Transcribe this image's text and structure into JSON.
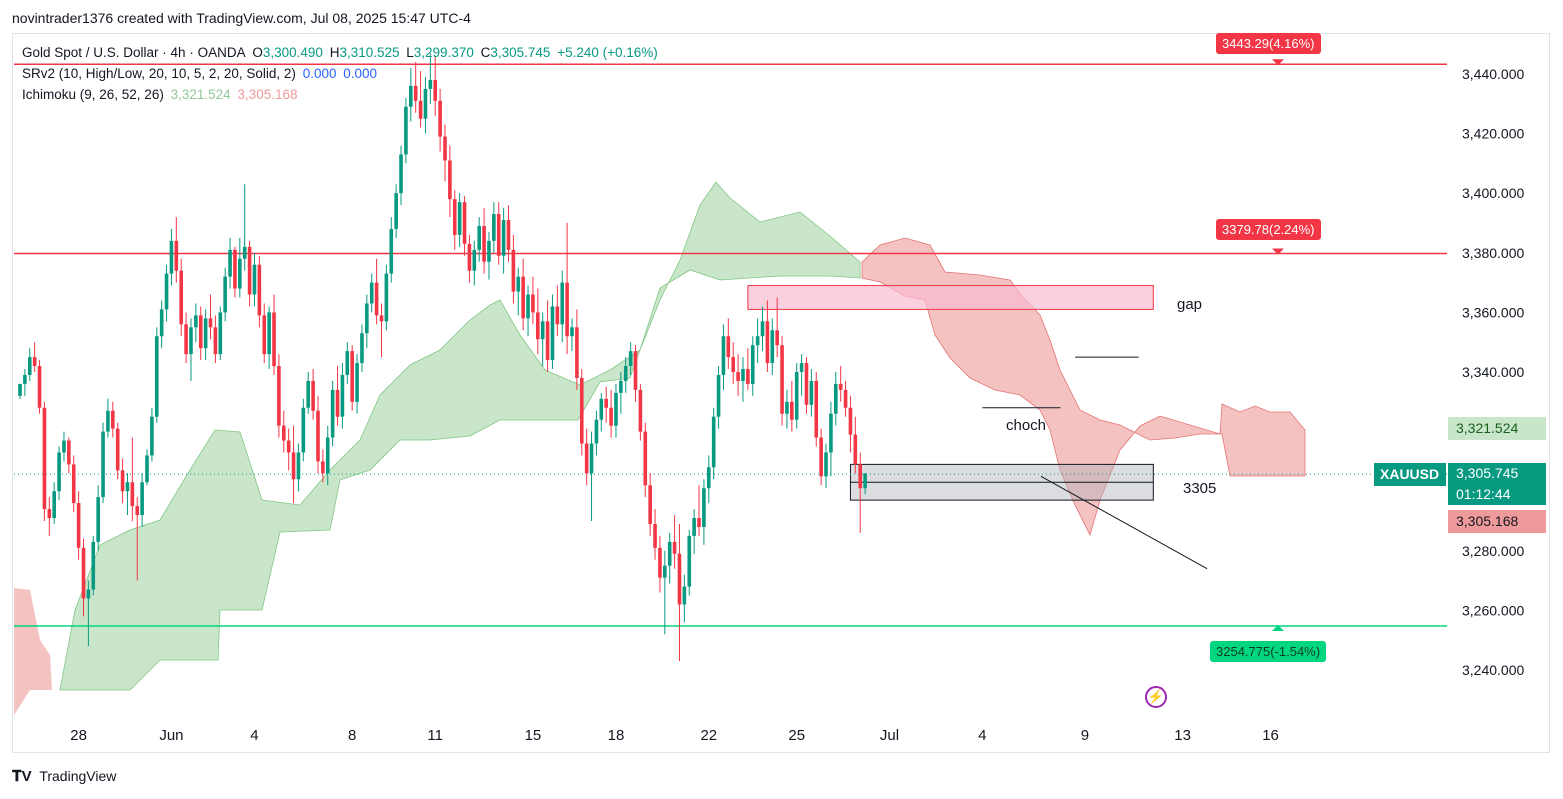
{
  "header": {
    "author_line": "novintrader1376 created with TradingView.com, Jul 08, 2025 15:47 UTC-4"
  },
  "legend": {
    "symbol_line": "Gold Spot / U.S. Dollar · 4h · OANDA",
    "open_label": "O",
    "open": "3,300.490",
    "high_label": "H",
    "high": "3,310.525",
    "low_label": "L",
    "low": "3,299.370",
    "close_label": "C",
    "close": "3,305.745",
    "change": "+5.240 (+0.16%)",
    "srv2_label": "SRv2 (10, High/Low, 20, 10, 5, 2, 20, Solid, 2)",
    "srv2_v1": "0.000",
    "srv2_v2": "0.000",
    "ichimoku_label": "Ichimoku (9, 26, 52, 26)",
    "ichimoku_v1": "3,321.524",
    "ichimoku_v2": "3,305.168"
  },
  "levels": {
    "top_badge": "3443.29(4.16%)",
    "mid_badge": "3379.78(2.24%)",
    "low_badge": "3254.775(-1.54%)"
  },
  "annotations": {
    "gap": "gap",
    "choch": "choch",
    "zone": "3305"
  },
  "price_labels": {
    "cloud_a": "3,321.524",
    "symbol": "XAUUSD",
    "last": "3,305.745",
    "countdown": "01:12:44",
    "cloud_b": "3,305.168"
  },
  "colors": {
    "up": "#089981",
    "down": "#f23645",
    "cloud_bull": "#a5d6a7",
    "cloud_bear": "#ef9a9a",
    "level_red": "#f23645",
    "level_green": "#00d67f"
  },
  "footer": {
    "brand": "TradingView"
  },
  "chart_data": {
    "type": "candlestick",
    "title": "Gold Spot / U.S. Dollar · 4h · OANDA",
    "ylim": [
      3230,
      3450
    ],
    "yticks": [
      "3,440.000",
      "3,420.000",
      "3,400.000",
      "3,380.000",
      "3,360.000",
      "3,340.000",
      "3,320.000",
      "3,300.000",
      "3,280.000",
      "3,260.000",
      "3,240.000"
    ],
    "ytick_values": [
      3440,
      3420,
      3400,
      3380,
      3360,
      3340,
      3320,
      3300,
      3280,
      3260,
      3240
    ],
    "xticks": [
      "28",
      "Jun",
      "4",
      "8",
      "11",
      "15",
      "18",
      "22",
      "25",
      "Jul",
      "4",
      "9",
      "13",
      "16"
    ],
    "xtick_index": [
      12,
      31,
      48,
      68,
      85,
      105,
      122,
      141,
      159,
      178,
      197,
      218,
      238,
      256
    ],
    "horizontal_levels": [
      3443.29,
      3379.78,
      3254.775
    ],
    "zones": [
      {
        "name": "gap",
        "from_index": 149,
        "to_index": 232,
        "low": 3361,
        "high": 3369
      },
      {
        "name": "3305",
        "from_index": 170,
        "to_index": 232,
        "low": 3297,
        "high": 3309
      }
    ],
    "trendline": {
      "from": [
        209,
        3305
      ],
      "to": [
        243,
        3274
      ]
    },
    "choch_line": {
      "from": [
        197,
        3328
      ],
      "to": [
        213,
        3328
      ]
    },
    "range_line": {
      "from": [
        216,
        3345
      ],
      "to": [
        229,
        3345
      ]
    },
    "candles": [
      [
        3332,
        3336,
        3331,
        3336
      ],
      [
        3336,
        3341,
        3332,
        3339
      ],
      [
        3339,
        3348,
        3337,
        3345
      ],
      [
        3345,
        3350,
        3340,
        3342
      ],
      [
        3342,
        3344,
        3326,
        3328
      ],
      [
        3328,
        3330,
        3290,
        3294
      ],
      [
        3294,
        3298,
        3285,
        3291
      ],
      [
        3291,
        3303,
        3289,
        3300
      ],
      [
        3300,
        3315,
        3297,
        3313
      ],
      [
        3313,
        3320,
        3310,
        3317
      ],
      [
        3317,
        3318,
        3306,
        3309
      ],
      [
        3309,
        3312,
        3293,
        3296
      ],
      [
        3296,
        3300,
        3277,
        3281
      ],
      [
        3281,
        3284,
        3258,
        3264
      ],
      [
        3264,
        3270,
        3248,
        3267
      ],
      [
        3267,
        3285,
        3265,
        3283
      ],
      [
        3283,
        3302,
        3280,
        3298
      ],
      [
        3298,
        3323,
        3296,
        3320
      ],
      [
        3320,
        3331,
        3318,
        3327
      ],
      [
        3327,
        3330,
        3318,
        3321
      ],
      [
        3321,
        3323,
        3304,
        3307
      ],
      [
        3307,
        3311,
        3296,
        3300
      ],
      [
        3300,
        3306,
        3292,
        3303
      ],
      [
        3303,
        3318,
        3290,
        3295
      ],
      [
        3295,
        3298,
        3270,
        3292
      ],
      [
        3292,
        3306,
        3288,
        3303
      ],
      [
        3303,
        3314,
        3302,
        3312
      ],
      [
        3312,
        3328,
        3310,
        3325
      ],
      [
        3325,
        3355,
        3323,
        3352
      ],
      [
        3352,
        3364,
        3348,
        3361
      ],
      [
        3361,
        3376,
        3357,
        3373
      ],
      [
        3373,
        3388,
        3369,
        3384
      ],
      [
        3384,
        3392,
        3370,
        3374
      ],
      [
        3374,
        3378,
        3352,
        3356
      ],
      [
        3356,
        3360,
        3343,
        3346
      ],
      [
        3346,
        3358,
        3337,
        3355
      ],
      [
        3355,
        3363,
        3350,
        3359
      ],
      [
        3359,
        3362,
        3344,
        3348
      ],
      [
        3348,
        3361,
        3344,
        3358
      ],
      [
        3358,
        3366,
        3351,
        3355
      ],
      [
        3355,
        3359,
        3343,
        3346
      ],
      [
        3346,
        3362,
        3344,
        3360
      ],
      [
        3360,
        3375,
        3357,
        3372
      ],
      [
        3372,
        3385,
        3368,
        3381
      ],
      [
        3381,
        3382,
        3365,
        3368
      ],
      [
        3368,
        3385,
        3365,
        3378
      ],
      [
        3378,
        3403,
        3374,
        3382
      ],
      [
        3382,
        3384,
        3362,
        3366
      ],
      [
        3366,
        3380,
        3362,
        3376
      ],
      [
        3376,
        3379,
        3355,
        3359
      ],
      [
        3359,
        3363,
        3343,
        3346
      ],
      [
        3346,
        3362,
        3341,
        3360
      ],
      [
        3360,
        3366,
        3339,
        3342
      ],
      [
        3342,
        3346,
        3318,
        3322
      ],
      [
        3322,
        3327,
        3313,
        3317
      ],
      [
        3317,
        3321,
        3307,
        3313
      ],
      [
        3313,
        3322,
        3296,
        3304
      ],
      [
        3304,
        3316,
        3300,
        3313
      ],
      [
        3313,
        3331,
        3310,
        3328
      ],
      [
        3328,
        3340,
        3326,
        3337
      ],
      [
        3337,
        3341,
        3324,
        3327
      ],
      [
        3327,
        3332,
        3306,
        3310
      ],
      [
        3310,
        3314,
        3303,
        3306
      ],
      [
        3306,
        3322,
        3302,
        3318
      ],
      [
        3318,
        3337,
        3315,
        3334
      ],
      [
        3334,
        3342,
        3322,
        3325
      ],
      [
        3325,
        3343,
        3321,
        3339
      ],
      [
        3339,
        3350,
        3336,
        3347
      ],
      [
        3347,
        3349,
        3327,
        3330
      ],
      [
        3330,
        3346,
        3326,
        3343
      ],
      [
        3343,
        3356,
        3340,
        3353
      ],
      [
        3353,
        3366,
        3348,
        3363
      ],
      [
        3363,
        3373,
        3360,
        3370
      ],
      [
        3370,
        3378,
        3356,
        3359
      ],
      [
        3359,
        3363,
        3345,
        3357
      ],
      [
        3357,
        3376,
        3354,
        3373
      ],
      [
        3373,
        3392,
        3370,
        3388
      ],
      [
        3388,
        3403,
        3385,
        3400
      ],
      [
        3400,
        3416,
        3396,
        3413
      ],
      [
        3413,
        3432,
        3410,
        3429
      ],
      [
        3429,
        3442,
        3424,
        3436
      ],
      [
        3436,
        3444,
        3427,
        3431
      ],
      [
        3431,
        3441,
        3422,
        3425
      ],
      [
        3425,
        3439,
        3420,
        3435
      ],
      [
        3435,
        3447,
        3430,
        3438
      ],
      [
        3438,
        3446,
        3426,
        3431
      ],
      [
        3431,
        3435,
        3414,
        3419
      ],
      [
        3419,
        3423,
        3404,
        3411
      ],
      [
        3411,
        3416,
        3392,
        3398
      ],
      [
        3398,
        3401,
        3381,
        3386
      ],
      [
        3386,
        3400,
        3382,
        3397
      ],
      [
        3397,
        3399,
        3379,
        3383
      ],
      [
        3383,
        3386,
        3370,
        3374
      ],
      [
        3374,
        3384,
        3369,
        3381
      ],
      [
        3381,
        3392,
        3377,
        3389
      ],
      [
        3389,
        3395,
        3373,
        3377
      ],
      [
        3377,
        3387,
        3371,
        3384
      ],
      [
        3384,
        3397,
        3380,
        3393
      ],
      [
        3393,
        3397,
        3376,
        3379
      ],
      [
        3379,
        3395,
        3373,
        3391
      ],
      [
        3391,
        3396,
        3377,
        3381
      ],
      [
        3381,
        3386,
        3363,
        3367
      ],
      [
        3367,
        3375,
        3359,
        3372
      ],
      [
        3372,
        3378,
        3354,
        3358
      ],
      [
        3358,
        3369,
        3352,
        3366
      ],
      [
        3366,
        3372,
        3356,
        3360
      ],
      [
        3360,
        3368,
        3346,
        3351
      ],
      [
        3351,
        3360,
        3342,
        3357
      ],
      [
        3357,
        3364,
        3340,
        3344
      ],
      [
        3344,
        3366,
        3341,
        3362
      ],
      [
        3362,
        3369,
        3352,
        3356
      ],
      [
        3356,
        3374,
        3350,
        3370
      ],
      [
        3370,
        3390,
        3346,
        3352
      ],
      [
        3352,
        3358,
        3347,
        3355
      ],
      [
        3355,
        3361,
        3334,
        3338
      ],
      [
        3338,
        3341,
        3312,
        3316
      ],
      [
        3316,
        3321,
        3302,
        3306
      ],
      [
        3306,
        3320,
        3290,
        3316
      ],
      [
        3316,
        3327,
        3312,
        3324
      ],
      [
        3324,
        3333,
        3320,
        3331
      ],
      [
        3331,
        3335,
        3323,
        3328
      ],
      [
        3328,
        3334,
        3318,
        3322
      ],
      [
        3322,
        3336,
        3318,
        3333
      ],
      [
        3333,
        3340,
        3326,
        3337
      ],
      [
        3337,
        3345,
        3333,
        3342
      ],
      [
        3342,
        3350,
        3339,
        3347
      ],
      [
        3347,
        3349,
        3330,
        3334
      ],
      [
        3334,
        3336,
        3317,
        3320
      ],
      [
        3320,
        3323,
        3298,
        3302
      ],
      [
        3302,
        3306,
        3285,
        3289
      ],
      [
        3289,
        3294,
        3277,
        3281
      ],
      [
        3281,
        3285,
        3266,
        3271
      ],
      [
        3271,
        3280,
        3252,
        3275
      ],
      [
        3275,
        3286,
        3269,
        3283
      ],
      [
        3283,
        3292,
        3274,
        3279
      ],
      [
        3279,
        3289,
        3243,
        3262
      ],
      [
        3262,
        3272,
        3256,
        3268
      ],
      [
        3268,
        3287,
        3265,
        3285
      ],
      [
        3285,
        3294,
        3279,
        3291
      ],
      [
        3291,
        3302,
        3285,
        3288
      ],
      [
        3288,
        3304,
        3282,
        3301
      ],
      [
        3301,
        3312,
        3296,
        3308
      ],
      [
        3308,
        3328,
        3304,
        3325
      ],
      [
        3325,
        3342,
        3321,
        3339
      ],
      [
        3339,
        3356,
        3334,
        3352
      ],
      [
        3352,
        3358,
        3341,
        3345
      ],
      [
        3345,
        3350,
        3336,
        3340
      ],
      [
        3340,
        3346,
        3332,
        3337
      ],
      [
        3337,
        3345,
        3330,
        3341
      ],
      [
        3341,
        3348,
        3334,
        3336
      ],
      [
        3336,
        3352,
        3332,
        3349
      ],
      [
        3349,
        3358,
        3343,
        3352
      ],
      [
        3352,
        3362,
        3347,
        3357
      ],
      [
        3357,
        3364,
        3340,
        3343
      ],
      [
        3343,
        3358,
        3339,
        3354
      ],
      [
        3354,
        3365,
        3345,
        3349
      ],
      [
        3349,
        3352,
        3322,
        3326
      ],
      [
        3326,
        3334,
        3321,
        3330
      ],
      [
        3330,
        3337,
        3320,
        3324
      ],
      [
        3324,
        3343,
        3321,
        3340
      ],
      [
        3340,
        3346,
        3332,
        3343
      ],
      [
        3343,
        3345,
        3326,
        3329
      ],
      [
        3329,
        3341,
        3325,
        3337
      ],
      [
        3337,
        3340,
        3315,
        3318
      ],
      [
        3318,
        3321,
        3302,
        3305
      ],
      [
        3305,
        3316,
        3301,
        3313
      ],
      [
        3313,
        3330,
        3305,
        3326
      ],
      [
        3326,
        3340,
        3322,
        3336
      ],
      [
        3336,
        3342,
        3330,
        3334
      ],
      [
        3334,
        3337,
        3325,
        3328
      ],
      [
        3328,
        3332,
        3313,
        3319
      ],
      [
        3319,
        3325,
        3306,
        3309
      ],
      [
        3309,
        3313,
        3286,
        3301
      ],
      [
        3301,
        3306,
        3299,
        3306
      ]
    ]
  }
}
